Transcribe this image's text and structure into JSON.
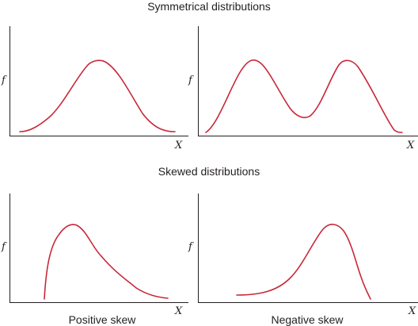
{
  "sections": {
    "symmetrical_title": "Symmetrical distributions",
    "skewed_title": "Skewed distributions"
  },
  "axes": {
    "y_label": "f",
    "x_label": "X"
  },
  "panels": [
    {
      "id": "normal",
      "caption": ""
    },
    {
      "id": "bimodal",
      "caption": ""
    },
    {
      "id": "positive-skew",
      "caption": "Positive skew"
    },
    {
      "id": "negative-skew",
      "caption": "Negative skew"
    }
  ],
  "colors": {
    "curve": "#c8283a",
    "axis": "#231f20"
  }
}
